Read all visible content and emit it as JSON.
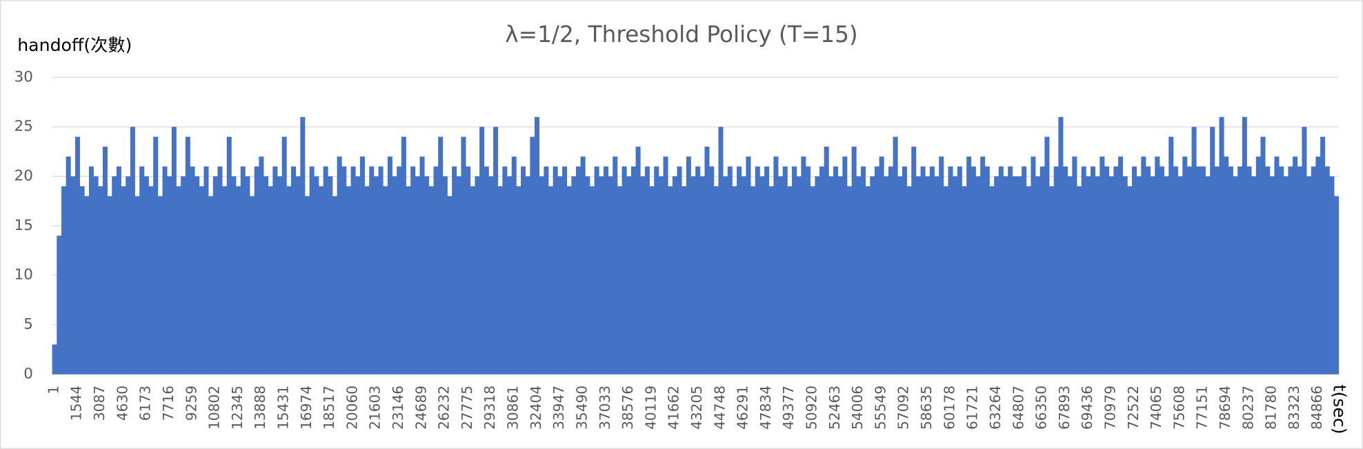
{
  "chart_data": {
    "type": "bar",
    "title": "λ=1/2, Threshold Policy (T=15)",
    "y_label": "handoff(次數)",
    "x_label": "t(sec)",
    "color": "#4472c4",
    "grid": true,
    "ylim": [
      0,
      30
    ],
    "yticks": [
      0,
      5,
      10,
      15,
      20,
      25,
      30
    ],
    "categories": [
      1,
      null,
      null,
      null,
      null,
      1544,
      null,
      null,
      null,
      null,
      3087,
      null,
      null,
      null,
      null,
      4630,
      null,
      null,
      null,
      null,
      6173,
      null,
      null,
      null,
      null,
      7716,
      null,
      null,
      null,
      null,
      9259,
      null,
      null,
      null,
      null,
      10802,
      null,
      null,
      null,
      null,
      12345,
      null,
      null,
      null,
      null,
      13888,
      null,
      null,
      null,
      null,
      15431,
      null,
      null,
      null,
      null,
      16974,
      null,
      null,
      null,
      null,
      18517,
      null,
      null,
      null,
      null,
      20060,
      null,
      null,
      null,
      null,
      21603,
      null,
      null,
      null,
      null,
      23146,
      null,
      null,
      null,
      null,
      24689,
      null,
      null,
      null,
      null,
      26232,
      null,
      null,
      null,
      null,
      27775,
      null,
      null,
      null,
      null,
      29318,
      null,
      null,
      null,
      null,
      30861,
      null,
      null,
      null,
      null,
      32404,
      null,
      null,
      null,
      null,
      33947,
      null,
      null,
      null,
      null,
      35490,
      null,
      null,
      null,
      null,
      37033,
      null,
      null,
      null,
      null,
      38576,
      null,
      null,
      null,
      null,
      40119,
      null,
      null,
      null,
      null,
      41662,
      null,
      null,
      null,
      null,
      43205,
      null,
      null,
      null,
      null,
      44748,
      null,
      null,
      null,
      null,
      46291,
      null,
      null,
      null,
      null,
      47834,
      null,
      null,
      null,
      null,
      49377,
      null,
      null,
      null,
      null,
      50920,
      null,
      null,
      null,
      null,
      52463,
      null,
      null,
      null,
      null,
      54006,
      null,
      null,
      null,
      null,
      55549,
      null,
      null,
      null,
      null,
      57092,
      null,
      null,
      null,
      null,
      58635,
      null,
      null,
      null,
      null,
      60178,
      null,
      null,
      null,
      null,
      61721,
      null,
      null,
      null,
      null,
      63264,
      null,
      null,
      null,
      null,
      64807,
      null,
      null,
      null,
      null,
      66350,
      null,
      null,
      null,
      null,
      67893,
      null,
      null,
      null,
      null,
      69436,
      null,
      null,
      null,
      null,
      70979,
      null,
      null,
      null,
      null,
      72522,
      null,
      null,
      null,
      null,
      74065,
      null,
      null,
      null,
      null,
      75608,
      null,
      null,
      null,
      null,
      77151,
      null,
      null,
      null,
      null,
      78694,
      null,
      null,
      null,
      null,
      80237,
      null,
      null,
      null,
      null,
      81780,
      null,
      null,
      null,
      null,
      83323,
      null,
      null,
      null,
      null,
      84866,
      null,
      null,
      null,
      null
    ],
    "values": [
      3,
      14,
      19,
      22,
      20,
      24,
      19,
      18,
      21,
      20,
      19,
      23,
      18,
      20,
      21,
      19,
      20,
      25,
      18,
      21,
      20,
      19,
      24,
      18,
      21,
      20,
      25,
      19,
      20,
      24,
      21,
      20,
      19,
      21,
      18,
      20,
      21,
      19,
      24,
      20,
      19,
      21,
      20,
      18,
      21,
      22,
      20,
      19,
      21,
      20,
      24,
      19,
      21,
      20,
      26,
      18,
      21,
      20,
      19,
      21,
      20,
      18,
      22,
      21,
      19,
      21,
      20,
      22,
      19,
      21,
      20,
      21,
      19,
      22,
      20,
      21,
      24,
      19,
      21,
      20,
      22,
      20,
      19,
      21,
      24,
      20,
      18,
      21,
      20,
      24,
      21,
      19,
      20,
      25,
      21,
      20,
      25,
      19,
      21,
      20,
      22,
      19,
      21,
      20,
      24,
      26,
      20,
      21,
      19,
      21,
      20,
      21,
      19,
      20,
      21,
      22,
      20,
      19,
      21,
      20,
      21,
      20,
      22,
      19,
      21,
      20,
      21,
      23,
      20,
      21,
      19,
      21,
      20,
      22,
      19,
      20,
      21,
      19,
      22,
      20,
      21,
      20,
      23,
      21,
      19,
      25,
      20,
      21,
      19,
      21,
      20,
      22,
      19,
      21,
      20,
      21,
      19,
      22,
      20,
      21,
      19,
      21,
      20,
      22,
      21,
      19,
      20,
      21,
      23,
      20,
      21,
      20,
      22,
      19,
      23,
      20,
      21,
      19,
      20,
      21,
      22,
      20,
      21,
      24,
      20,
      21,
      19,
      23,
      20,
      21,
      20,
      21,
      20,
      22,
      19,
      21,
      20,
      21,
      19,
      22,
      21,
      20,
      22,
      21,
      19,
      20,
      21,
      20,
      21,
      20,
      20,
      21,
      19,
      22,
      20,
      21,
      24,
      19,
      21,
      26,
      21,
      20,
      22,
      19,
      21,
      20,
      21,
      20,
      22,
      21,
      20,
      21,
      22,
      20,
      19,
      21,
      20,
      22,
      21,
      20,
      22,
      21,
      20,
      24,
      21,
      20,
      22,
      21,
      25,
      21,
      21,
      20,
      25,
      21,
      26,
      22,
      21,
      20,
      21,
      26,
      21,
      20,
      22,
      24,
      21,
      20,
      22,
      21,
      20,
      21,
      22,
      21,
      25,
      20,
      21,
      22,
      24,
      21,
      20,
      18
    ]
  }
}
